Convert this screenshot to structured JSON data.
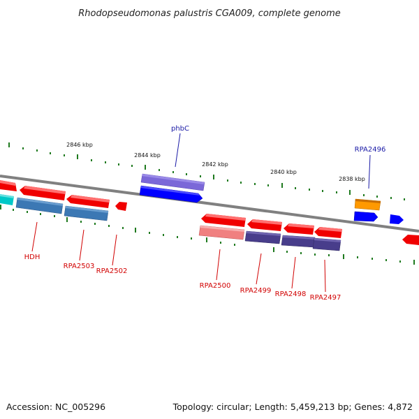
{
  "title": "Rhodopseudomonas palustris CGA009, complete genome",
  "footer": {
    "accession": "Accession: NC_005296",
    "summary": "Topology: circular; Length: 5,459,213 bp; Genes: 4,872"
  },
  "ruler": {
    "labels": [
      "2846 kbp",
      "2844 kbp",
      "2842 kbp",
      "2840 kbp",
      "2838 kbp"
    ]
  },
  "colors": {
    "backbone": "#808080",
    "tick": "#1f7a1f",
    "forward_label": "#1a1aa6",
    "reverse_label": "#d10000",
    "red": "#f00000",
    "cyan": "#00c8c8",
    "steelblue": "#3c78b4",
    "purple": "#6a5acd",
    "blue": "#0000ff",
    "orange": "#ff9900",
    "salmon": "#f08080",
    "darkslate": "#483d8b"
  },
  "gene_labels": {
    "phbC": "phbC",
    "RPA2496": "RPA2496",
    "HDH": "HDH",
    "RPA2503": "RPA2503",
    "RPA2502": "RPA2502",
    "RPA2500": "RPA2500",
    "RPA2499": "RPA2499",
    "RPA2498": "RPA2498",
    "RPA2497": "RPA2497"
  }
}
